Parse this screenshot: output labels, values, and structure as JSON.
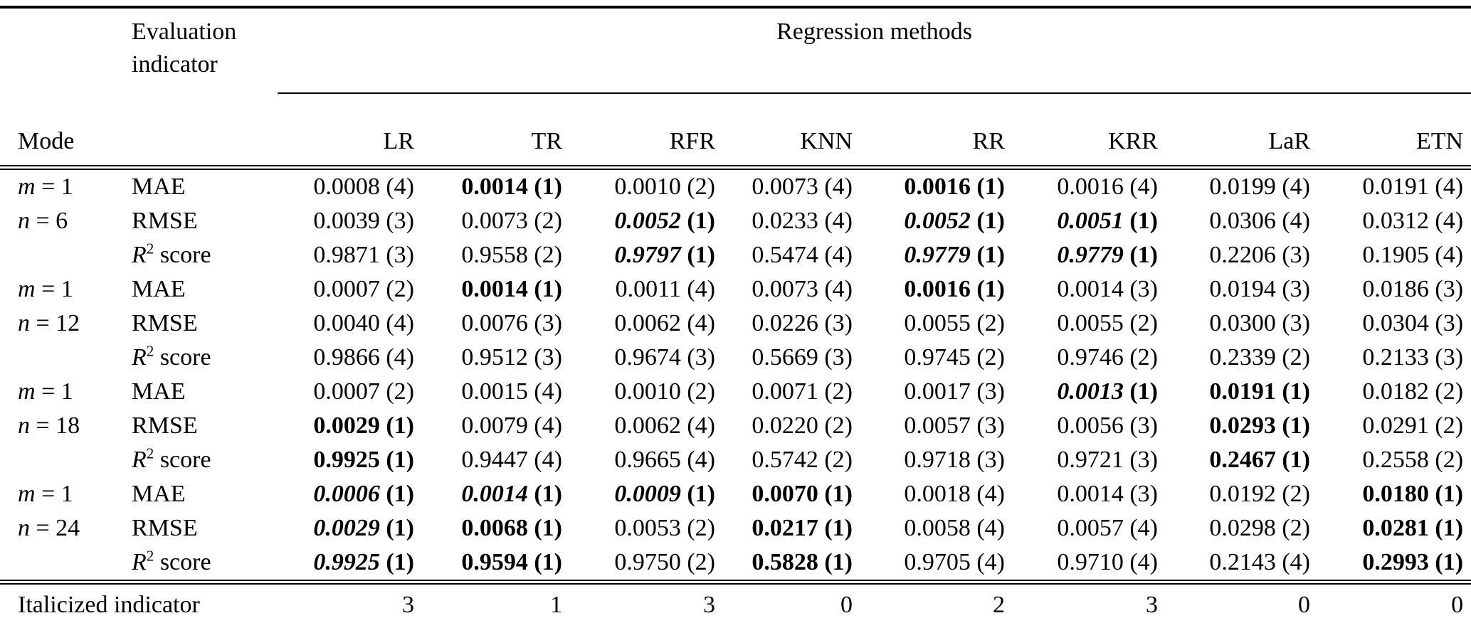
{
  "colors": {
    "text": "#000000",
    "background": "#ffffff"
  },
  "table": {
    "header": {
      "mode_label": "Mode",
      "eval_line1": "Evaluation",
      "eval_line2": "indicator",
      "group_label": "Regression methods",
      "methods": [
        "LR",
        "TR",
        "RFR",
        "KNN",
        "RR",
        "KRR",
        "LaR",
        "ETN"
      ]
    },
    "style_legend": {
      "n": "normal",
      "b": "bold",
      "bi": "bold-italic"
    },
    "rows": [
      {
        "mode": {
          "var": "m",
          "rest": " = 1"
        },
        "indicator": {
          "text": "MAE"
        },
        "cells": [
          [
            "0.0008",
            "4",
            "n"
          ],
          [
            "0.0014",
            "1",
            "b"
          ],
          [
            "0.0010",
            "2",
            "n"
          ],
          [
            "0.0073",
            "4",
            "n"
          ],
          [
            "0.0016",
            "1",
            "b"
          ],
          [
            "0.0016",
            "4",
            "n"
          ],
          [
            "0.0199",
            "4",
            "n"
          ],
          [
            "0.0191",
            "4",
            "n"
          ]
        ]
      },
      {
        "mode": {
          "var": "n",
          "rest": " = 6"
        },
        "indicator": {
          "text": "RMSE"
        },
        "cells": [
          [
            "0.0039",
            "3",
            "n"
          ],
          [
            "0.0073",
            "2",
            "n"
          ],
          [
            "0.0052",
            "1",
            "bi"
          ],
          [
            "0.0233",
            "4",
            "n"
          ],
          [
            "0.0052",
            "1",
            "bi"
          ],
          [
            "0.0051",
            "1",
            "bi"
          ],
          [
            "0.0306",
            "4",
            "n"
          ],
          [
            "0.0312",
            "4",
            "n"
          ]
        ]
      },
      {
        "mode": null,
        "indicator": {
          "var": "R",
          "sup": "2",
          "rest": " score"
        },
        "cells": [
          [
            "0.9871",
            "3",
            "n"
          ],
          [
            "0.9558",
            "2",
            "n"
          ],
          [
            "0.9797",
            "1",
            "bi"
          ],
          [
            "0.5474",
            "4",
            "n"
          ],
          [
            "0.9779",
            "1",
            "bi"
          ],
          [
            "0.9779",
            "1",
            "bi"
          ],
          [
            "0.2206",
            "3",
            "n"
          ],
          [
            "0.1905",
            "4",
            "n"
          ]
        ]
      },
      {
        "mode": {
          "var": "m",
          "rest": " = 1"
        },
        "indicator": {
          "text": "MAE"
        },
        "cells": [
          [
            "0.0007",
            "2",
            "n"
          ],
          [
            "0.0014",
            "1",
            "b"
          ],
          [
            "0.0011",
            "4",
            "n"
          ],
          [
            "0.0073",
            "4",
            "n"
          ],
          [
            "0.0016",
            "1",
            "b"
          ],
          [
            "0.0014",
            "3",
            "n"
          ],
          [
            "0.0194",
            "3",
            "n"
          ],
          [
            "0.0186",
            "3",
            "n"
          ]
        ]
      },
      {
        "mode": {
          "var": "n",
          "rest": " = 12"
        },
        "indicator": {
          "text": "RMSE"
        },
        "cells": [
          [
            "0.0040",
            "4",
            "n"
          ],
          [
            "0.0076",
            "3",
            "n"
          ],
          [
            "0.0062",
            "4",
            "n"
          ],
          [
            "0.0226",
            "3",
            "n"
          ],
          [
            "0.0055",
            "2",
            "n"
          ],
          [
            "0.0055",
            "2",
            "n"
          ],
          [
            "0.0300",
            "3",
            "n"
          ],
          [
            "0.0304",
            "3",
            "n"
          ]
        ]
      },
      {
        "mode": null,
        "indicator": {
          "var": "R",
          "sup": "2",
          "rest": " score"
        },
        "cells": [
          [
            "0.9866",
            "4",
            "n"
          ],
          [
            "0.9512",
            "3",
            "n"
          ],
          [
            "0.9674",
            "3",
            "n"
          ],
          [
            "0.5669",
            "3",
            "n"
          ],
          [
            "0.9745",
            "2",
            "n"
          ],
          [
            "0.9746",
            "2",
            "n"
          ],
          [
            "0.2339",
            "2",
            "n"
          ],
          [
            "0.2133",
            "3",
            "n"
          ]
        ]
      },
      {
        "mode": {
          "var": "m",
          "rest": " = 1"
        },
        "indicator": {
          "text": "MAE"
        },
        "cells": [
          [
            "0.0007",
            "2",
            "n"
          ],
          [
            "0.0015",
            "4",
            "n"
          ],
          [
            "0.0010",
            "2",
            "n"
          ],
          [
            "0.0071",
            "2",
            "n"
          ],
          [
            "0.0017",
            "3",
            "n"
          ],
          [
            "0.0013",
            "1",
            "bi"
          ],
          [
            "0.0191",
            "1",
            "b"
          ],
          [
            "0.0182",
            "2",
            "n"
          ]
        ]
      },
      {
        "mode": {
          "var": "n",
          "rest": " = 18"
        },
        "indicator": {
          "text": "RMSE"
        },
        "cells": [
          [
            "0.0029",
            "1",
            "b"
          ],
          [
            "0.0079",
            "4",
            "n"
          ],
          [
            "0.0062",
            "4",
            "n"
          ],
          [
            "0.0220",
            "2",
            "n"
          ],
          [
            "0.0057",
            "3",
            "n"
          ],
          [
            "0.0056",
            "3",
            "n"
          ],
          [
            "0.0293",
            "1",
            "b"
          ],
          [
            "0.0291",
            "2",
            "n"
          ]
        ]
      },
      {
        "mode": null,
        "indicator": {
          "var": "R",
          "sup": "2",
          "rest": " score"
        },
        "cells": [
          [
            "0.9925",
            "1",
            "b"
          ],
          [
            "0.9447",
            "4",
            "n"
          ],
          [
            "0.9665",
            "4",
            "n"
          ],
          [
            "0.5742",
            "2",
            "n"
          ],
          [
            "0.9718",
            "3",
            "n"
          ],
          [
            "0.9721",
            "3",
            "n"
          ],
          [
            "0.2467",
            "1",
            "b"
          ],
          [
            "0.2558",
            "2",
            "n"
          ]
        ]
      },
      {
        "mode": {
          "var": "m",
          "rest": " = 1"
        },
        "indicator": {
          "text": "MAE"
        },
        "cells": [
          [
            "0.0006",
            "1",
            "bi"
          ],
          [
            "0.0014",
            "1",
            "bi"
          ],
          [
            "0.0009",
            "1",
            "bi"
          ],
          [
            "0.0070",
            "1",
            "b"
          ],
          [
            "0.0018",
            "4",
            "n"
          ],
          [
            "0.0014",
            "3",
            "n"
          ],
          [
            "0.0192",
            "2",
            "n"
          ],
          [
            "0.0180",
            "1",
            "b"
          ]
        ]
      },
      {
        "mode": {
          "var": "n",
          "rest": " = 24"
        },
        "indicator": {
          "text": "RMSE"
        },
        "cells": [
          [
            "0.0029",
            "1",
            "bi"
          ],
          [
            "0.0068",
            "1",
            "b"
          ],
          [
            "0.0053",
            "2",
            "n"
          ],
          [
            "0.0217",
            "1",
            "b"
          ],
          [
            "0.0058",
            "4",
            "n"
          ],
          [
            "0.0057",
            "4",
            "n"
          ],
          [
            "0.0298",
            "2",
            "n"
          ],
          [
            "0.0281",
            "1",
            "b"
          ]
        ]
      },
      {
        "mode": null,
        "indicator": {
          "var": "R",
          "sup": "2",
          "rest": " score"
        },
        "cells": [
          [
            "0.9925",
            "1",
            "bi"
          ],
          [
            "0.9594",
            "1",
            "b"
          ],
          [
            "0.9750",
            "2",
            "n"
          ],
          [
            "0.5828",
            "1",
            "b"
          ],
          [
            "0.9705",
            "4",
            "n"
          ],
          [
            "0.9710",
            "4",
            "n"
          ],
          [
            "0.2143",
            "4",
            "n"
          ],
          [
            "0.2993",
            "1",
            "b"
          ]
        ]
      }
    ],
    "footer": {
      "label": "Italicized indicator",
      "values": [
        "3",
        "1",
        "3",
        "0",
        "2",
        "3",
        "0",
        "0"
      ]
    }
  }
}
